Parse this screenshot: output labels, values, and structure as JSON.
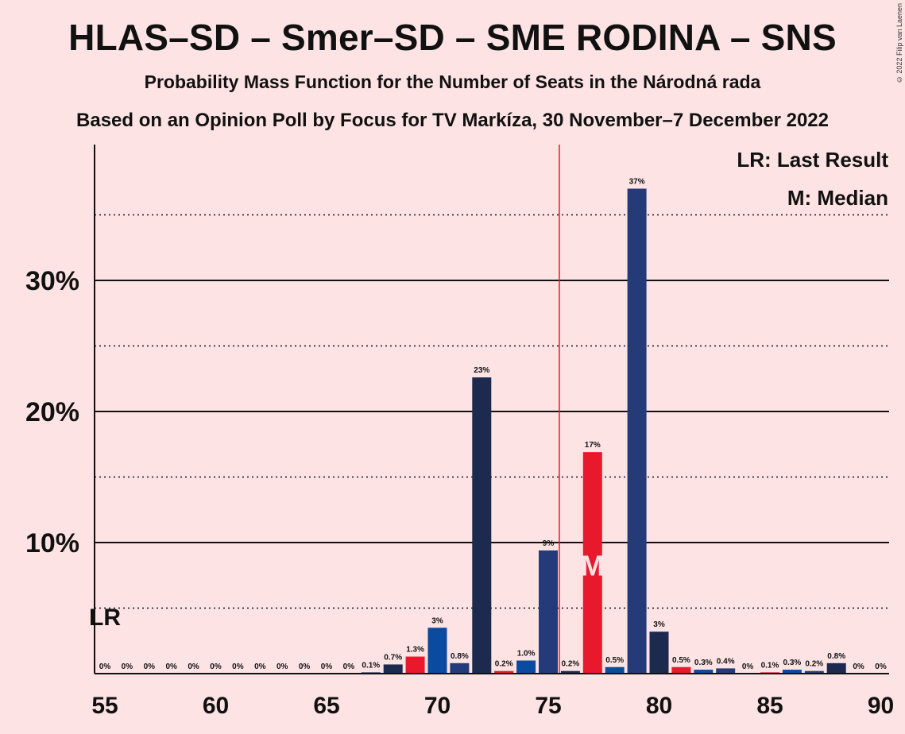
{
  "title": "HLAS–SD – Smer–SD – SME RODINA – SNS",
  "subtitle": "Probability Mass Function for the Number of Seats in the Národná rada",
  "subtitle2": "Based on an Opinion Poll by Focus for TV Markíza, 30 November–7 December 2022",
  "copyright": "© 2022 Filip van Laenen",
  "legend": {
    "last_result": "LR: Last Result",
    "median": "M: Median"
  },
  "markers": {
    "last_result_label": "LR",
    "median_label": "M"
  },
  "colors": {
    "background": "#fde3e4",
    "red": "#e8192c",
    "dark_navy": "#1b2a4e",
    "navy": "#253a78",
    "blue": "#0a4a9f",
    "majority_line": "#e8192c"
  },
  "chart_data": {
    "type": "bar",
    "xlim": [
      55,
      90
    ],
    "ylim": [
      0,
      40
    ],
    "x_ticks": [
      "55",
      "60",
      "65",
      "70",
      "75",
      "80",
      "85",
      "90"
    ],
    "y_ticks": [
      "10%",
      "20%",
      "30%"
    ],
    "y_solid_gridlines": [
      10,
      20,
      30
    ],
    "y_dotted_gridlines": [
      5,
      15,
      25,
      35
    ],
    "majority_line_x": 75.5,
    "last_result_x": 55,
    "median_x": 77,
    "bars": [
      {
        "x": 55,
        "value": 0,
        "label": "0%",
        "color": "navy"
      },
      {
        "x": 56,
        "value": 0,
        "label": "0%",
        "color": "navy"
      },
      {
        "x": 57,
        "value": 0,
        "label": "0%",
        "color": "navy"
      },
      {
        "x": 58,
        "value": 0,
        "label": "0%",
        "color": "navy"
      },
      {
        "x": 59,
        "value": 0,
        "label": "0%",
        "color": "navy"
      },
      {
        "x": 60,
        "value": 0,
        "label": "0%",
        "color": "navy"
      },
      {
        "x": 61,
        "value": 0,
        "label": "0%",
        "color": "navy"
      },
      {
        "x": 62,
        "value": 0,
        "label": "0%",
        "color": "navy"
      },
      {
        "x": 63,
        "value": 0,
        "label": "0%",
        "color": "navy"
      },
      {
        "x": 64,
        "value": 0,
        "label": "0%",
        "color": "navy"
      },
      {
        "x": 65,
        "value": 0,
        "label": "0%",
        "color": "navy"
      },
      {
        "x": 66,
        "value": 0,
        "label": "0%",
        "color": "navy"
      },
      {
        "x": 67,
        "value": 0.1,
        "label": "0.1%",
        "color": "navy"
      },
      {
        "x": 68,
        "value": 0.7,
        "label": "0.7%",
        "color": "dark_navy"
      },
      {
        "x": 69,
        "value": 1.3,
        "label": "1.3%",
        "color": "red"
      },
      {
        "x": 70,
        "value": 3.5,
        "label": "3%",
        "color": "blue"
      },
      {
        "x": 71,
        "value": 0.8,
        "label": "0.8%",
        "color": "navy"
      },
      {
        "x": 72,
        "value": 22.6,
        "label": "23%",
        "color": "dark_navy"
      },
      {
        "x": 73,
        "value": 0.2,
        "label": "0.2%",
        "color": "red"
      },
      {
        "x": 74,
        "value": 1.0,
        "label": "1.0%",
        "color": "blue"
      },
      {
        "x": 75,
        "value": 9.4,
        "label": "9%",
        "color": "navy"
      },
      {
        "x": 76,
        "value": 0.2,
        "label": "0.2%",
        "color": "dark_navy"
      },
      {
        "x": 77,
        "value": 16.9,
        "label": "17%",
        "color": "red"
      },
      {
        "x": 78,
        "value": 0.5,
        "label": "0.5%",
        "color": "blue"
      },
      {
        "x": 79,
        "value": 37.0,
        "label": "37%",
        "color": "navy"
      },
      {
        "x": 80,
        "value": 3.2,
        "label": "3%",
        "color": "dark_navy"
      },
      {
        "x": 81,
        "value": 0.5,
        "label": "0.5%",
        "color": "red"
      },
      {
        "x": 82,
        "value": 0.3,
        "label": "0.3%",
        "color": "blue"
      },
      {
        "x": 83,
        "value": 0.4,
        "label": "0.4%",
        "color": "navy"
      },
      {
        "x": 84,
        "value": 0,
        "label": "0%",
        "color": "dark_navy"
      },
      {
        "x": 85,
        "value": 0.1,
        "label": "0.1%",
        "color": "red"
      },
      {
        "x": 86,
        "value": 0.3,
        "label": "0.3%",
        "color": "blue"
      },
      {
        "x": 87,
        "value": 0.2,
        "label": "0.2%",
        "color": "navy"
      },
      {
        "x": 88,
        "value": 0.8,
        "label": "0.8%",
        "color": "dark_navy"
      },
      {
        "x": 89,
        "value": 0,
        "label": "0%",
        "color": "red"
      },
      {
        "x": 90,
        "value": 0,
        "label": "0%",
        "color": "blue"
      }
    ]
  }
}
